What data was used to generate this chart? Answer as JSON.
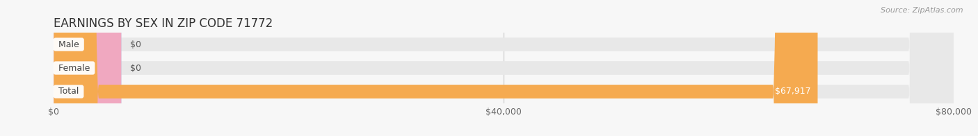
{
  "title": "EARNINGS BY SEX IN ZIP CODE 71772",
  "source_text": "Source: ZipAtlas.com",
  "categories": [
    "Male",
    "Female",
    "Total"
  ],
  "values": [
    0,
    0,
    67917
  ],
  "max_value": 80000,
  "bar_colors": [
    "#a8c8e8",
    "#f0a8c0",
    "#f5aa50"
  ],
  "bar_bg_color": "#e8e8e8",
  "label_bg_color": "#ffffff",
  "label_colors": [
    "#444444",
    "#444444",
    "#444444"
  ],
  "value_label_colors": [
    "#555555",
    "#555555",
    "#ffffff"
  ],
  "value_labels": [
    "$0",
    "$0",
    "$67,917"
  ],
  "x_ticks": [
    0,
    40000,
    80000
  ],
  "x_tick_labels": [
    "$0",
    "$40,000",
    "$80,000"
  ],
  "title_fontsize": 12,
  "tick_fontsize": 9,
  "source_fontsize": 8,
  "bar_height": 0.58,
  "background_color": "#f7f7f7",
  "fig_width": 14.06,
  "fig_height": 1.96
}
